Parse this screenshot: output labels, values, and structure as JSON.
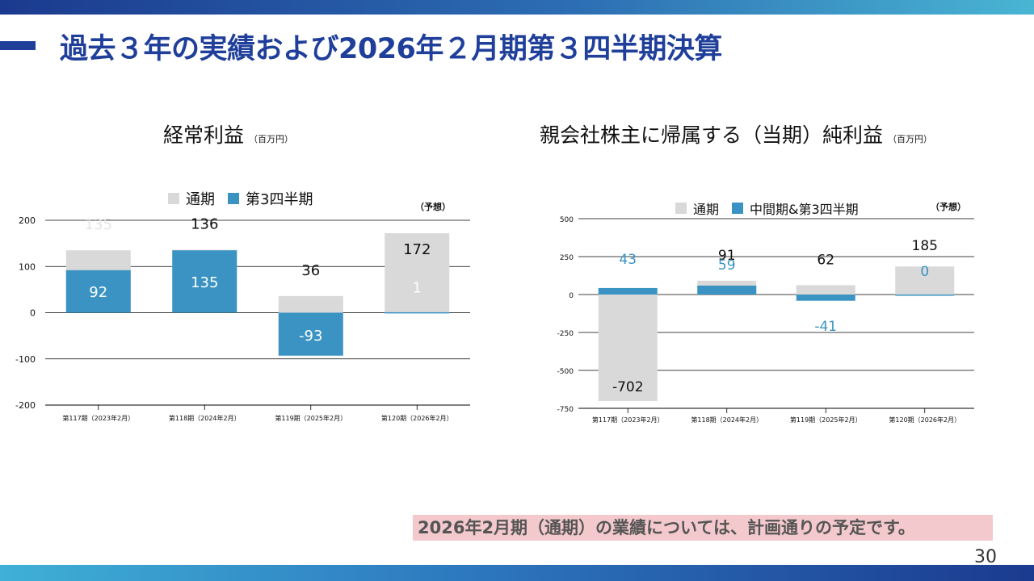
{
  "page_title": "過去３年の実績および2026年２月期第３四半期決算",
  "note": "2026年2月期（通期）の業績については、計画通りの予定です。",
  "page_number": "30",
  "colors": {
    "full_year": "#d9d9d9",
    "quarter": "#3a93c3",
    "title": "#1f3f9a"
  },
  "chart_data": [
    {
      "type": "bar",
      "title": "経常利益",
      "unit": "（百万円）",
      "forecast_label": "（予想）",
      "legend": [
        "通期",
        "第3四半期"
      ],
      "categories": [
        "第117期（2023年2月）",
        "第118期（2024年2月）",
        "第119期（2025年2月）",
        "第120期（2026年2月）"
      ],
      "y_ticks": [
        "200",
        "100",
        "0",
        "-100",
        "-200"
      ],
      "ylim": [
        -200,
        200
      ],
      "series": [
        {
          "name": "通期",
          "values": [
            135,
            136,
            36,
            172
          ],
          "labels": [
            "135",
            "136",
            "36",
            "172"
          ]
        },
        {
          "name": "第3四半期",
          "values": [
            92,
            135,
            -93,
            1
          ],
          "labels": [
            "92",
            "135",
            "-93",
            "1"
          ]
        }
      ],
      "grid": true
    },
    {
      "type": "bar",
      "title": "親会社株主に帰属する（当期）純利益",
      "unit": "（百万円）",
      "forecast_label": "（予想）",
      "legend": [
        "通期",
        "中間期&第3四半期"
      ],
      "categories": [
        "第117期（2023年2月）",
        "第118期（2024年2月）",
        "第119期（2025年2月）",
        "第120期（2026年2月）"
      ],
      "y_ticks": [
        "500",
        "250",
        "0",
        "-250",
        "-500",
        "-750"
      ],
      "ylim": [
        -750,
        500
      ],
      "series": [
        {
          "name": "通期",
          "values": [
            -702,
            91,
            62,
            185
          ],
          "labels": [
            "-702",
            "91",
            "62",
            "185"
          ]
        },
        {
          "name": "中間期&第3四半期",
          "values": [
            43,
            59,
            -41,
            0
          ],
          "labels": [
            "43",
            "59",
            "-41",
            "0"
          ]
        }
      ],
      "grid": true
    }
  ]
}
